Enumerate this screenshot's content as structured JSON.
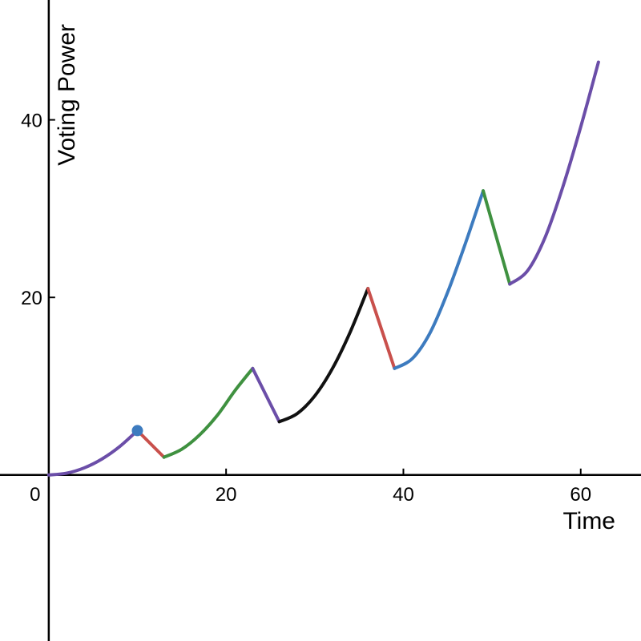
{
  "chart_data": {
    "type": "line",
    "xlabel": "Time",
    "ylabel": "Voting Power",
    "xlim": [
      -5.5,
      66.8
    ],
    "ylim": [
      -18.7,
      53.5
    ],
    "x_ticks": [
      0,
      20,
      40,
      60
    ],
    "y_ticks": [
      20,
      40
    ],
    "x_tick_labels": [
      "0",
      "20",
      "40",
      "60"
    ],
    "y_tick_labels": [
      "20",
      "40"
    ],
    "grid": false,
    "legend": "none",
    "series": [
      {
        "color": "#6b4ea8",
        "x": [
          0,
          2,
          4,
          6,
          8,
          10
        ],
        "y": [
          0,
          0.2,
          0.8,
          1.8,
          3.2,
          5.0
        ]
      },
      {
        "color": "#c9504c",
        "x": [
          10,
          13
        ],
        "y": [
          5.0,
          2.0
        ]
      },
      {
        "color": "#3f9140",
        "x": [
          13,
          15,
          17,
          19,
          21,
          23
        ],
        "y": [
          2.0,
          2.9,
          4.5,
          6.7,
          9.5,
          12.0
        ]
      },
      {
        "color": "#6b4ea8",
        "x": [
          23,
          26
        ],
        "y": [
          12.0,
          6.0
        ]
      },
      {
        "color": "#111111",
        "x": [
          26,
          28,
          30,
          32,
          34,
          36
        ],
        "y": [
          6.0,
          6.9,
          8.9,
          12.0,
          16.1,
          21.0
        ]
      },
      {
        "color": "#c9504c",
        "x": [
          36,
          39
        ],
        "y": [
          21.0,
          12.0
        ]
      },
      {
        "color": "#3d7bbf",
        "x": [
          39,
          41,
          43,
          45,
          47,
          49
        ],
        "y": [
          12.0,
          13.1,
          16.0,
          20.6,
          26.1,
          32.0
        ]
      },
      {
        "color": "#3f9140",
        "x": [
          49,
          52
        ],
        "y": [
          32.0,
          21.5
        ]
      },
      {
        "color": "#6b4ea8",
        "x": [
          52,
          54,
          56,
          58,
          60,
          62
        ],
        "y": [
          21.5,
          23.0,
          26.8,
          32.5,
          39.2,
          46.5
        ]
      }
    ],
    "points": [
      {
        "x": 10,
        "y": 5.0,
        "color": "#3d7bbf"
      }
    ]
  }
}
